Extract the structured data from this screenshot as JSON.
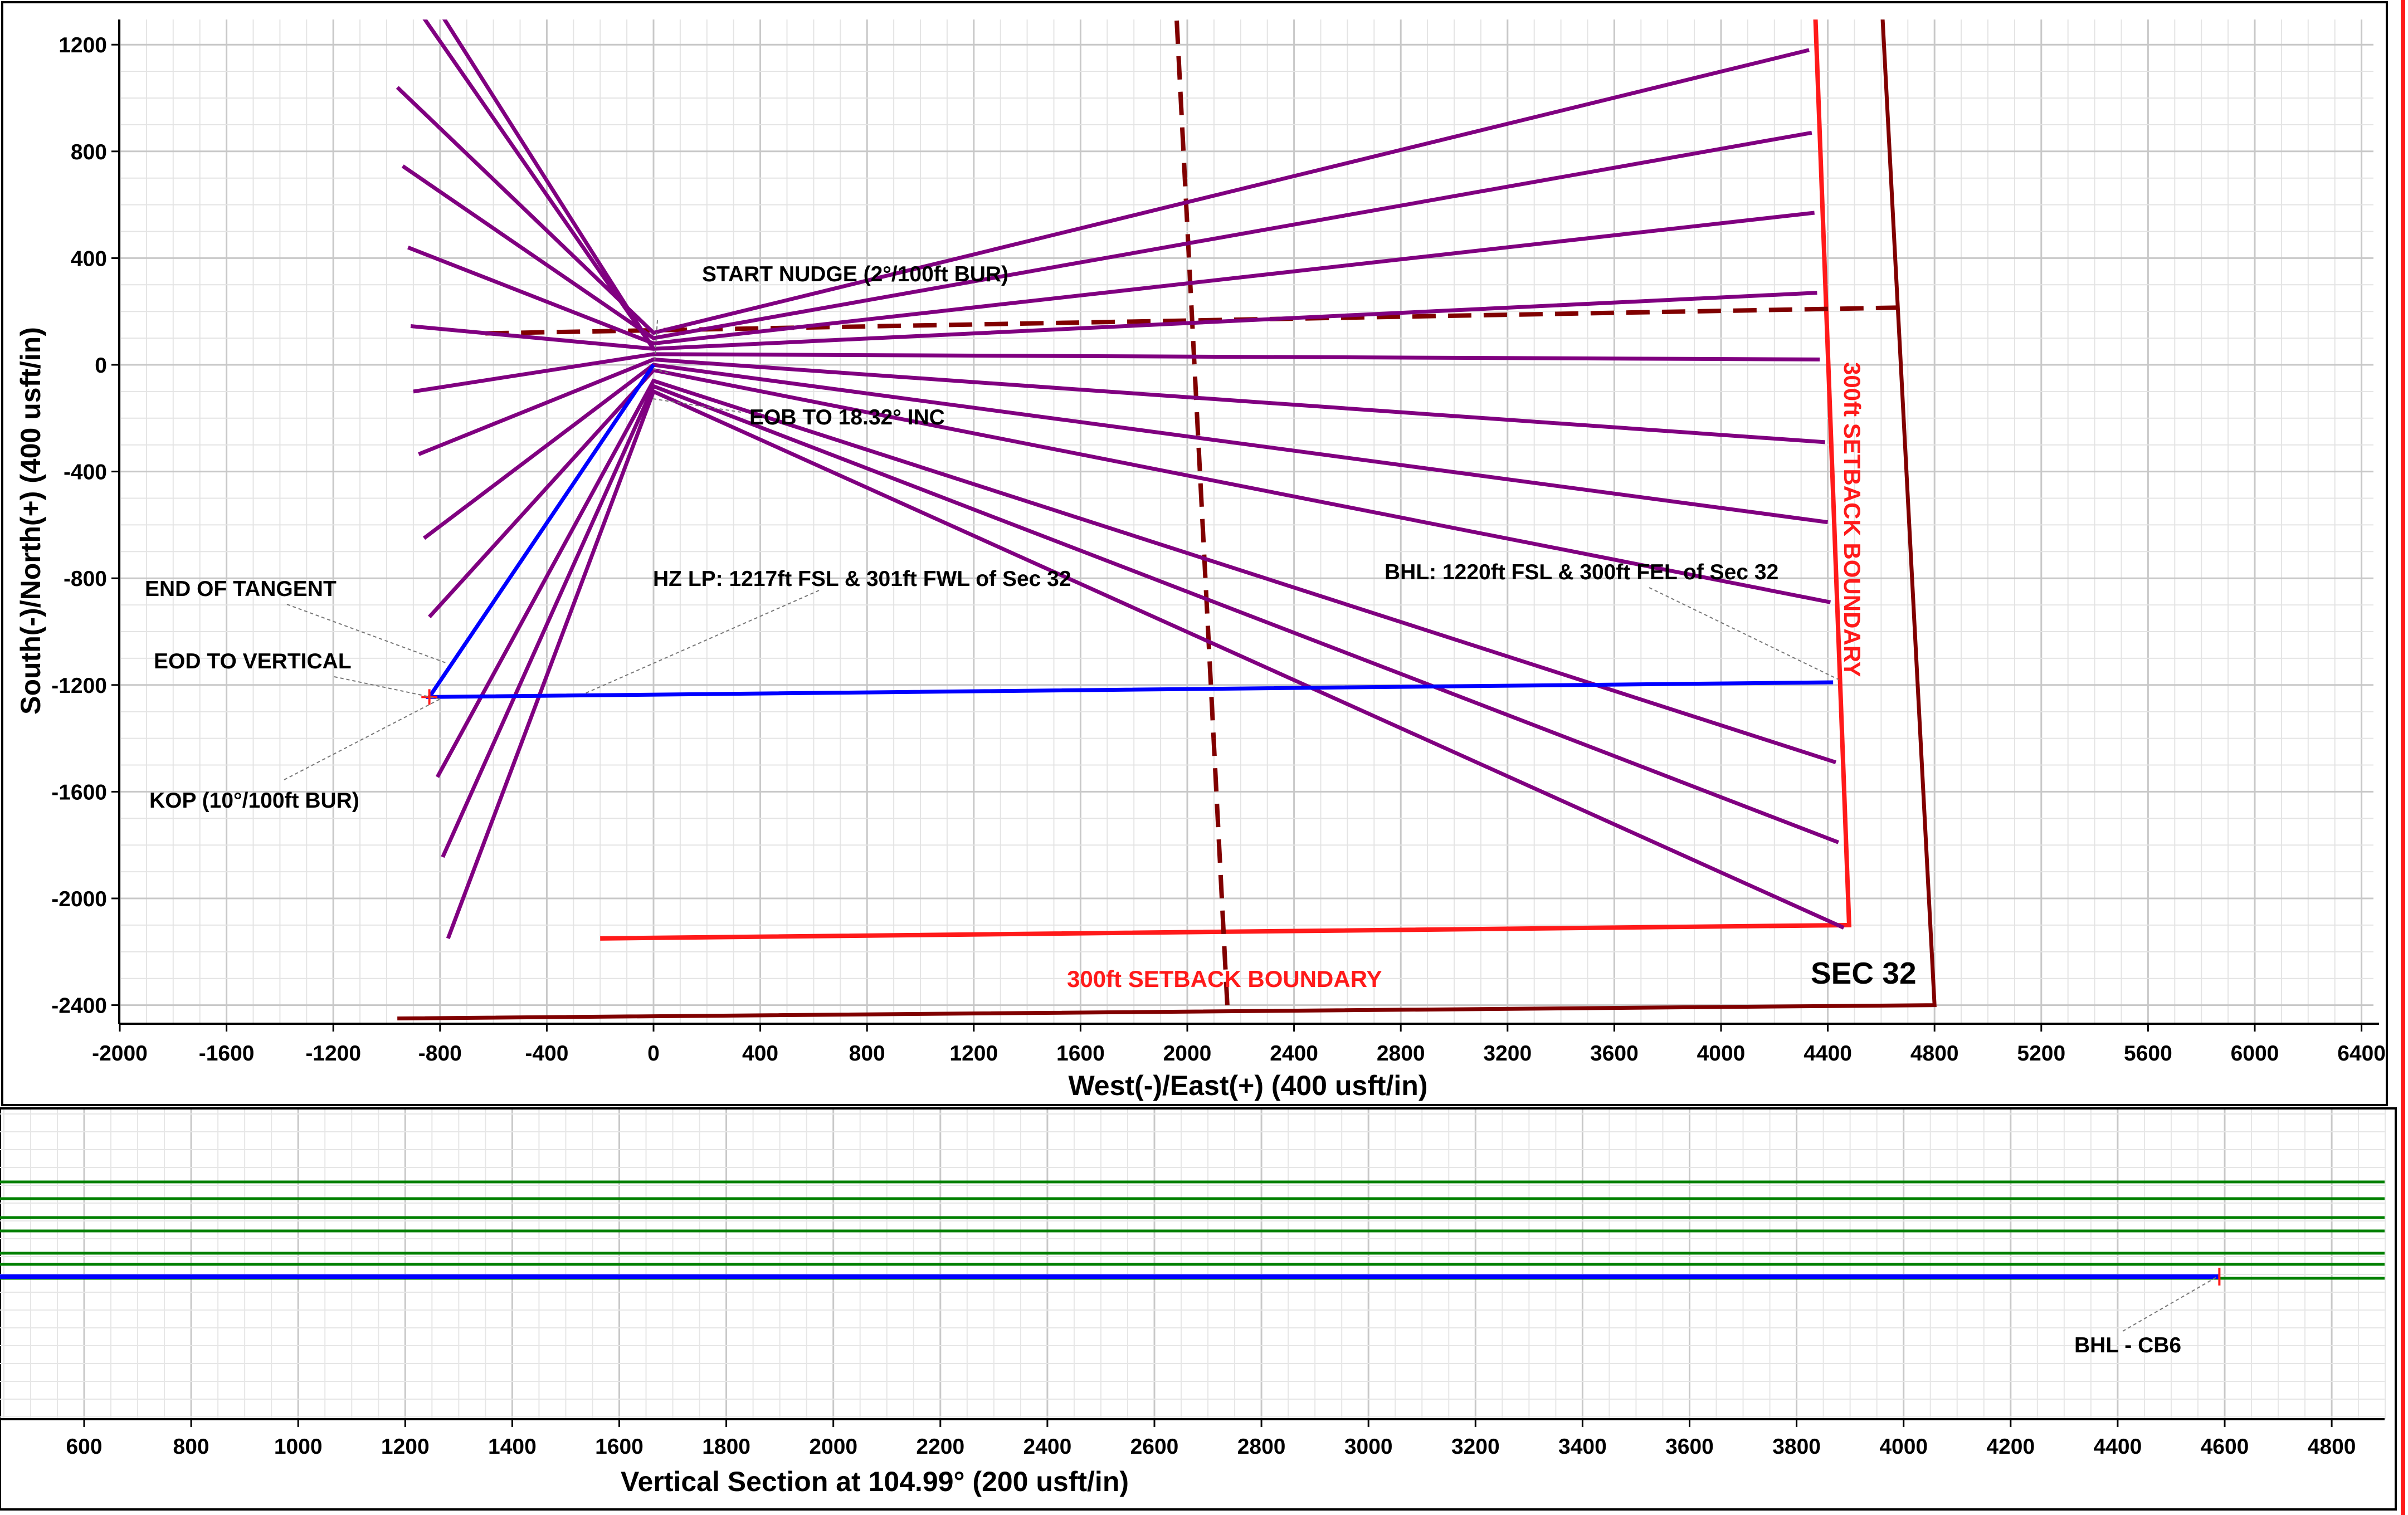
{
  "chart_data": [
    {
      "type": "line",
      "xlabel": "West(-)/East(+) (400 usft/in)",
      "ylabel": "South(-)/North(+) (400 usft/in)",
      "xlim": [
        -2000,
        6400
      ],
      "ylim": [
        -2400,
        1200
      ],
      "x_ticks": [
        -2000,
        -1600,
        -1200,
        -800,
        -400,
        0,
        400,
        800,
        1200,
        1600,
        2000,
        2400,
        2800,
        3200,
        3600,
        4000,
        4400,
        4800,
        5200,
        5600,
        6000,
        6400
      ],
      "y_ticks": [
        1200,
        800,
        400,
        0,
        -400,
        -800,
        -1200,
        -1600,
        -2000,
        -2400
      ],
      "grid": true,
      "colors": {
        "offset_wells": "#800080",
        "plan": "#0000ff",
        "section": "#800000",
        "setback": "#ff1a1a"
      },
      "section_boundary": {
        "x": [
          -960,
          4800,
          4600,
          -1100
        ],
        "y": [
          -2450,
          -2400,
          1400,
          1400
        ]
      },
      "setback_boundary": {
        "x": [
          -200,
          4480,
          4350,
          -400
        ],
        "y": [
          -2150,
          -2100,
          1400,
          1400
        ]
      },
      "ns_dashed_line": {
        "x": [
          2150,
          1960
        ],
        "y": [
          -2400,
          1300
        ]
      },
      "ew_dashed_line": {
        "x": [
          -630,
          4700
        ],
        "y": [
          118,
          215
        ]
      },
      "offset_wells": [
        {
          "start": [
            0,
            120
          ],
          "end": [
            4330,
            1180
          ],
          "fan_tip": [
            -960,
            1040
          ]
        },
        {
          "start": [
            0,
            100
          ],
          "end": [
            4340,
            870
          ],
          "fan_tip": [
            -940,
            745
          ]
        },
        {
          "start": [
            0,
            80
          ],
          "end": [
            4350,
            570
          ],
          "fan_tip": [
            -920,
            440
          ]
        },
        {
          "start": [
            0,
            60
          ],
          "end": [
            4360,
            270
          ],
          "fan_tip": [
            -910,
            145
          ]
        },
        {
          "start": [
            0,
            40
          ],
          "end": [
            4370,
            20
          ],
          "fan_tip": [
            -900,
            -100
          ]
        },
        {
          "start": [
            0,
            20
          ],
          "end": [
            4390,
            -290
          ],
          "fan_tip": [
            -880,
            -335
          ]
        },
        {
          "start": [
            0,
            0
          ],
          "end": [
            4400,
            -590
          ],
          "fan_tip": [
            -860,
            -650
          ]
        },
        {
          "start": [
            0,
            -20
          ],
          "end": [
            4410,
            -890
          ],
          "fan_tip": [
            -840,
            -945
          ]
        },
        {
          "start": [
            0,
            -60
          ],
          "end": [
            4430,
            -1490
          ],
          "fan_tip": [
            -810,
            -1545
          ]
        },
        {
          "start": [
            0,
            -80
          ],
          "end": [
            4440,
            -1790
          ],
          "fan_tip": [
            -790,
            -1845
          ]
        },
        {
          "start": [
            0,
            -100
          ],
          "end": [
            4460,
            -2110
          ],
          "fan_tip": [
            -770,
            -2150
          ]
        }
      ],
      "plan": {
        "x": [
          0,
          0,
          -840,
          -840,
          4420
        ],
        "y": [
          0,
          0,
          -1245,
          -1245,
          -1190
        ]
      },
      "annotations": [
        {
          "text": "START NUDGE (2°/100ft BUR)"
        },
        {
          "text": "EOB TO 18.32° INC"
        },
        {
          "text": "END OF TANGENT"
        },
        {
          "text": "EOD TO VERTICAL"
        },
        {
          "text": "KOP (10°/100ft BUR)"
        },
        {
          "text": "HZ LP: 1217ft FSL & 301ft FWL of Sec 32"
        },
        {
          "text": "BHL: 1220ft FSL & 300ft FEL of Sec 32"
        },
        {
          "text": "300ft SETBACK BOUNDARY"
        },
        {
          "text": "300ft SETBACK BOUNDARY"
        },
        {
          "text": "SEC 32"
        }
      ]
    },
    {
      "type": "line",
      "xlabel": "Vertical Section at 104.99° (200 usft/in)",
      "x_ticks": [
        600,
        800,
        1000,
        1200,
        1400,
        1600,
        1800,
        2000,
        2200,
        2400,
        2600,
        2800,
        3000,
        3200,
        3400,
        3600,
        3800,
        4000,
        4200,
        4400,
        4600,
        4800
      ],
      "xlim": [
        440,
        4890
      ],
      "grid": true,
      "colors": {
        "formations": "#008000",
        "plan": "#0000ff"
      },
      "formation_lines": 7,
      "plan_end_x": 4590,
      "annotations": [
        {
          "text": "BHL - CB6"
        }
      ]
    }
  ]
}
